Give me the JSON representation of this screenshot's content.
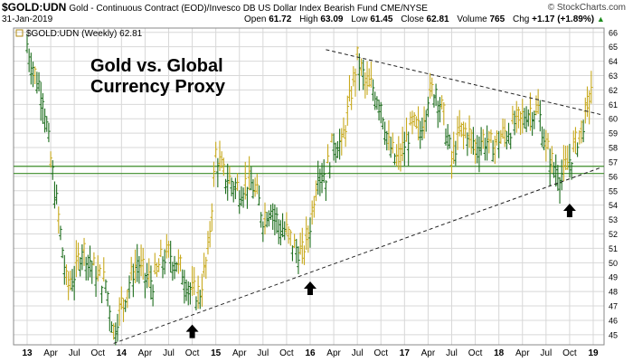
{
  "header": {
    "symbol": "$GOLD:UDN",
    "description": "Gold - Continuous Contract (EOD)/Invesco DB US Dollar Index Bearish Fund",
    "exchange": "CME/NYSE",
    "date": "31-Jan-2019",
    "open_label": "Open",
    "open": "61.72",
    "high_label": "High",
    "high": "63.09",
    "low_label": "Low",
    "low": "61.45",
    "close_label": "Close",
    "close": "62.81",
    "volume_label": "Volume",
    "volume": "765",
    "chg_label": "Chg",
    "chg": "+1.17 (+1.89%)",
    "chg_arrow": "▲",
    "watermark": "© StockCharts.com"
  },
  "chart_data": {
    "type": "bar",
    "legend_text": "$GOLD:UDN (Weekly) 62.81",
    "legend_placement": "top-left",
    "annotation_line1": "Gold vs. Global",
    "annotation_line2": "Currency Proxy",
    "x_ticks": [
      "13",
      "Apr",
      "Jul",
      "Oct",
      "14",
      "Apr",
      "Jul",
      "Oct",
      "15",
      "Apr",
      "Jul",
      "Oct",
      "16",
      "Apr",
      "Jul",
      "Oct",
      "17",
      "Apr",
      "Jul",
      "Oct",
      "18",
      "Apr",
      "Jul",
      "Oct",
      "19"
    ],
    "y_ticks": [
      45,
      46,
      47,
      48,
      49,
      50,
      51,
      52,
      53,
      54,
      55,
      56,
      57,
      58,
      59,
      60,
      61,
      62,
      63,
      64,
      65,
      66
    ],
    "ylim": [
      44.3,
      66.3
    ],
    "grid": true,
    "weekly_close": [
      {
        "date": "2013-01",
        "value": 65.0
      },
      {
        "date": "2013-02",
        "value": 63.0
      },
      {
        "date": "2013-03",
        "value": 61.6
      },
      {
        "date": "2013-04",
        "value": 57.0
      },
      {
        "date": "2013-05",
        "value": 53.0
      },
      {
        "date": "2013-06",
        "value": 48.5
      },
      {
        "date": "2013-07",
        "value": 49.0
      },
      {
        "date": "2013-08",
        "value": 51.0
      },
      {
        "date": "2013-09",
        "value": 50.0
      },
      {
        "date": "2013-10",
        "value": 49.0
      },
      {
        "date": "2013-11",
        "value": 48.5
      },
      {
        "date": "2013-12",
        "value": 45.2
      },
      {
        "date": "2014-01",
        "value": 47.0
      },
      {
        "date": "2014-02",
        "value": 48.5
      },
      {
        "date": "2014-03",
        "value": 50.0
      },
      {
        "date": "2014-04",
        "value": 49.0
      },
      {
        "date": "2014-05",
        "value": 48.5
      },
      {
        "date": "2014-06",
        "value": 50.0
      },
      {
        "date": "2014-07",
        "value": 50.5
      },
      {
        "date": "2014-08",
        "value": 50.0
      },
      {
        "date": "2014-09",
        "value": 49.0
      },
      {
        "date": "2014-10",
        "value": 47.8
      },
      {
        "date": "2014-11",
        "value": 47.8
      },
      {
        "date": "2014-12",
        "value": 50.5
      },
      {
        "date": "2015-01",
        "value": 57.5
      },
      {
        "date": "2015-02",
        "value": 56.0
      },
      {
        "date": "2015-03",
        "value": 55.5
      },
      {
        "date": "2015-04",
        "value": 55.0
      },
      {
        "date": "2015-05",
        "value": 55.5
      },
      {
        "date": "2015-06",
        "value": 55.0
      },
      {
        "date": "2015-07",
        "value": 53.0
      },
      {
        "date": "2015-08",
        "value": 54.0
      },
      {
        "date": "2015-09",
        "value": 52.5
      },
      {
        "date": "2015-10",
        "value": 52.0
      },
      {
        "date": "2015-11",
        "value": 51.0
      },
      {
        "date": "2015-12",
        "value": 50.5
      },
      {
        "date": "2016-01",
        "value": 52.5
      },
      {
        "date": "2016-02",
        "value": 56.5
      },
      {
        "date": "2016-03",
        "value": 56.0
      },
      {
        "date": "2016-04",
        "value": 58.5
      },
      {
        "date": "2016-05",
        "value": 58.0
      },
      {
        "date": "2016-06",
        "value": 61.0
      },
      {
        "date": "2016-07",
        "value": 64.0
      },
      {
        "date": "2016-08",
        "value": 62.5
      },
      {
        "date": "2016-09",
        "value": 62.0
      },
      {
        "date": "2016-10",
        "value": 61.0
      },
      {
        "date": "2016-11",
        "value": 58.0
      },
      {
        "date": "2016-12",
        "value": 57.0
      },
      {
        "date": "2017-01",
        "value": 58.0
      },
      {
        "date": "2017-02",
        "value": 59.5
      },
      {
        "date": "2017-03",
        "value": 59.0
      },
      {
        "date": "2017-04",
        "value": 61.5
      },
      {
        "date": "2017-05",
        "value": 62.0
      },
      {
        "date": "2017-06",
        "value": 60.0
      },
      {
        "date": "2017-07",
        "value": 57.0
      },
      {
        "date": "2017-08",
        "value": 59.0
      },
      {
        "date": "2017-09",
        "value": 59.0
      },
      {
        "date": "2017-10",
        "value": 58.0
      },
      {
        "date": "2017-11",
        "value": 58.5
      },
      {
        "date": "2017-12",
        "value": 58.0
      },
      {
        "date": "2018-01",
        "value": 58.5
      },
      {
        "date": "2018-02",
        "value": 59.0
      },
      {
        "date": "2018-03",
        "value": 59.5
      },
      {
        "date": "2018-04",
        "value": 60.0
      },
      {
        "date": "2018-05",
        "value": 60.5
      },
      {
        "date": "2018-06",
        "value": 60.5
      },
      {
        "date": "2018-07",
        "value": 58.0
      },
      {
        "date": "2018-08",
        "value": 56.5
      },
      {
        "date": "2018-09",
        "value": 56.0
      },
      {
        "date": "2018-10",
        "value": 57.0
      },
      {
        "date": "2018-11",
        "value": 58.5
      },
      {
        "date": "2018-12",
        "value": 60.0
      },
      {
        "date": "2019-01",
        "value": 62.8
      }
    ],
    "horizontal_lines": [
      56.7,
      56.2
    ],
    "trendlines": [
      {
        "style": "dashed",
        "from": {
          "date": "2016-03",
          "value": 64.8
        },
        "to": {
          "date": "2019-01",
          "value": 60.3
        }
      },
      {
        "style": "dashed",
        "from": {
          "date": "2013-12",
          "value": 44.4
        },
        "to": {
          "date": "2019-01",
          "value": 56.6
        }
      }
    ],
    "arrows": [
      {
        "date": "2014-10",
        "value": 45.2
      },
      {
        "date": "2016-01",
        "value": 48.2
      },
      {
        "date": "2018-10",
        "value": 53.6
      }
    ],
    "colors": {
      "up_bar": "#c8aa1e",
      "down_bar": "#1e6e1e",
      "hline": "#3c8c28",
      "trendline": "#222222",
      "grid": "#d8d8d8",
      "arrow": "#000000"
    }
  }
}
